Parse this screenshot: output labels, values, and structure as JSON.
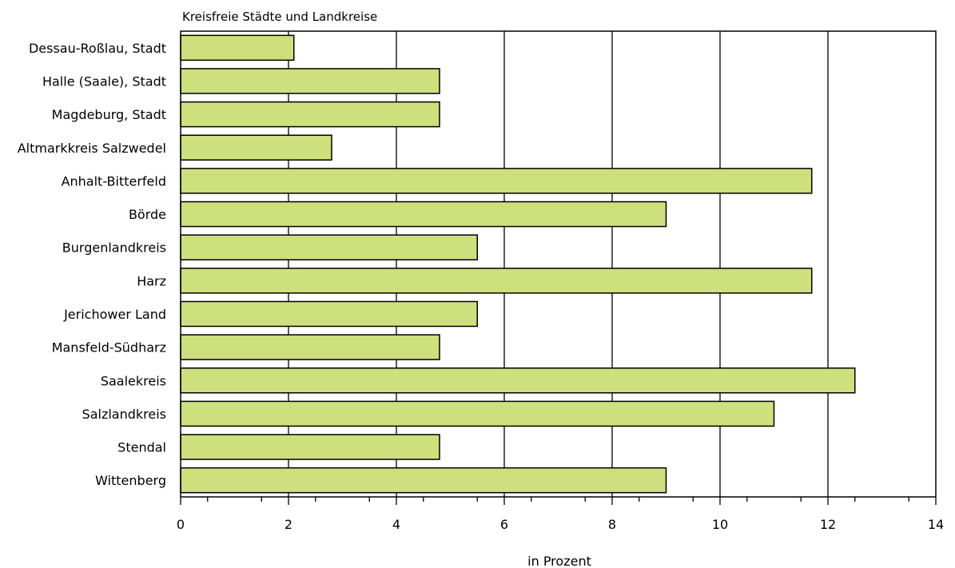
{
  "chart_data": {
    "type": "bar",
    "orientation": "horizontal",
    "title": "Kreisfreie Städte und Landkreise",
    "xlabel": "in Prozent",
    "ylabel": "",
    "xlim": [
      0,
      14
    ],
    "x_ticks": [
      0,
      2,
      4,
      6,
      8,
      10,
      12,
      14
    ],
    "grid": true,
    "colors": {
      "bar": "#cedf7d",
      "axis": "#000000"
    },
    "categories": [
      "Dessau-Roßlau, Stadt",
      "Halle (Saale), Stadt",
      "Magdeburg, Stadt",
      "Altmarkkreis Salzwedel",
      "Anhalt-Bitterfeld",
      "Börde",
      "Burgenlandkreis",
      "Harz",
      "Jerichower Land",
      "Mansfeld-Südharz",
      "Saalekreis",
      "Salzlandkreis",
      "Stendal",
      "Wittenberg"
    ],
    "values": [
      2.1,
      4.8,
      4.8,
      2.8,
      11.7,
      9.0,
      5.5,
      11.7,
      5.5,
      4.8,
      12.5,
      11.0,
      4.8,
      9.0
    ]
  }
}
